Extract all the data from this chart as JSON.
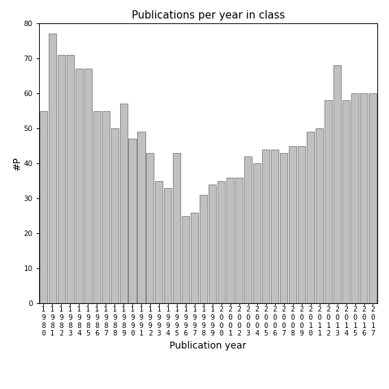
{
  "title": "Publications per year in class",
  "xlabel": "Publication year",
  "ylabel": "#P",
  "years": [
    "1980",
    "1981",
    "1982",
    "1983",
    "1984",
    "1985",
    "1986",
    "1987",
    "1988",
    "1989",
    "1990",
    "1991",
    "1992",
    "1993",
    "1994",
    "1995",
    "1996",
    "1997",
    "1998",
    "1999",
    "2000",
    "2001",
    "2002",
    "2003",
    "2004",
    "2005",
    "2006",
    "2007",
    "2008",
    "2009",
    "2010",
    "2011",
    "2012",
    "2013",
    "2014",
    "2015",
    "2016",
    "2017"
  ],
  "values": [
    55,
    77,
    71,
    71,
    67,
    67,
    55,
    55,
    50,
    57,
    47,
    49,
    43,
    35,
    33,
    43,
    25,
    26,
    31,
    34,
    35,
    36,
    36,
    42,
    40,
    44,
    44,
    43,
    45,
    45,
    49,
    50,
    58,
    68,
    58,
    60,
    60,
    60
  ],
  "bar_color": "#c0c0c0",
  "bar_edgecolor": "#606060",
  "ylim": [
    0,
    80
  ],
  "yticks": [
    0,
    10,
    20,
    30,
    40,
    50,
    60,
    70,
    80
  ],
  "background_color": "#ffffff",
  "title_fontsize": 11,
  "label_fontsize": 10,
  "tick_fontsize": 7.5
}
